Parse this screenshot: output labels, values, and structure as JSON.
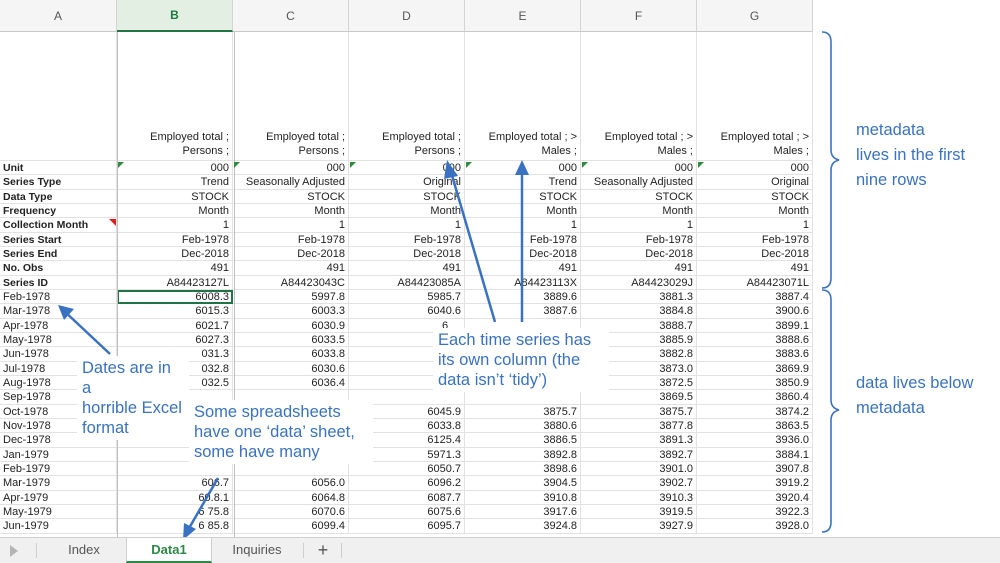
{
  "spreadsheet": {
    "columns": [
      "A",
      "B",
      "C",
      "D",
      "E",
      "F",
      "G"
    ],
    "selected_column": "B",
    "series_titles": [
      [
        "Employed total ;",
        "Persons ;"
      ],
      [
        "Employed total ;",
        "Persons ;"
      ],
      [
        "Employed total ;",
        "Persons ;"
      ],
      [
        "Employed total ;  >",
        "Males ;"
      ],
      [
        "Employed total ;  >",
        "Males ;"
      ],
      [
        "Employed total ;  >",
        "Males ;"
      ]
    ],
    "metadata_rows": [
      {
        "label": "Unit",
        "values": [
          "000",
          "000",
          "000",
          "000",
          "000",
          "000"
        ]
      },
      {
        "label": "Series Type",
        "values": [
          "Trend",
          "Seasonally Adjusted",
          "Original",
          "Trend",
          "Seasonally Adjusted",
          "Original"
        ]
      },
      {
        "label": "Data Type",
        "values": [
          "STOCK",
          "STOCK",
          "STOCK",
          "STOCK",
          "STOCK",
          "STOCK"
        ]
      },
      {
        "label": "Frequency",
        "values": [
          "Month",
          "Month",
          "Month",
          "Month",
          "Month",
          "Month"
        ]
      },
      {
        "label": "Collection Month",
        "values": [
          "1",
          "1",
          "1",
          "1",
          "1",
          "1"
        ]
      },
      {
        "label": "Series Start",
        "values": [
          "Feb-1978",
          "Feb-1978",
          "Feb-1978",
          "Feb-1978",
          "Feb-1978",
          "Feb-1978"
        ]
      },
      {
        "label": "Series End",
        "values": [
          "Dec-2018",
          "Dec-2018",
          "Dec-2018",
          "Dec-2018",
          "Dec-2018",
          "Dec-2018"
        ]
      },
      {
        "label": "No. Obs",
        "values": [
          "491",
          "491",
          "491",
          "491",
          "491",
          "491"
        ]
      },
      {
        "label": "Series ID",
        "values": [
          "A84423127L",
          "A84423043C",
          "A84423085A",
          "A84423113X",
          "A84423029J",
          "A84423071L"
        ]
      }
    ],
    "data_rows": [
      {
        "date": "Feb-1978",
        "values": [
          "6008.3",
          "5997.8",
          "5985.7",
          "3889.6",
          "3881.3",
          "3887.4"
        ]
      },
      {
        "date": "Mar-1978",
        "values": [
          "6015.3",
          "6003.3",
          "6040.6",
          "3887.6",
          "3884.8",
          "3900.6"
        ]
      },
      {
        "date": "Apr-1978",
        "values": [
          "6021.7",
          "6030.9",
          "",
          "",
          "3888.7",
          "3899.1"
        ]
      },
      {
        "date": "May-1978",
        "values": [
          "6027.3",
          "6033.5",
          "",
          "",
          "3885.9",
          "3888.6"
        ]
      },
      {
        "date": "Jun-1978",
        "values": [
          "",
          "6033.8",
          "",
          "",
          "3882.8",
          "3883.6"
        ]
      },
      {
        "date": "Jul-1978",
        "values": [
          "",
          "6030.6",
          "",
          "",
          "3873.0",
          "3869.9"
        ]
      },
      {
        "date": "Aug-1978",
        "values": [
          "",
          "6036.4",
          "",
          "",
          "3872.5",
          "3850.9"
        ]
      },
      {
        "date": "Sep-1978",
        "values": [
          "",
          "",
          "",
          "",
          "3869.5",
          "3860.4"
        ]
      },
      {
        "date": "Oct-1978",
        "values": [
          "",
          "",
          "6045.9",
          "3875.7",
          "3875.7",
          "3874.2"
        ]
      },
      {
        "date": "Nov-1978",
        "values": [
          "",
          "",
          "6033.8",
          "3880.6",
          "3877.8",
          "3863.5"
        ]
      },
      {
        "date": "Dec-1978",
        "values": [
          "",
          "",
          "6125.4",
          "3886.5",
          "3891.3",
          "3936.0"
        ]
      },
      {
        "date": "Jan-1979",
        "values": [
          "",
          "",
          "5971.3",
          "3892.8",
          "3892.7",
          "3884.1"
        ]
      },
      {
        "date": "Feb-1979",
        "values": [
          "",
          "",
          "6050.7",
          "3898.6",
          "3901.0",
          "3907.8"
        ]
      },
      {
        "date": "Mar-1979",
        "values": [
          "",
          "6056.0",
          "6096.2",
          "3904.5",
          "3902.7",
          "3919.2"
        ]
      },
      {
        "date": "Apr-1979",
        "values": [
          "",
          "6064.8",
          "6087.7",
          "3910.8",
          "3910.3",
          "3920.4"
        ]
      },
      {
        "date": "May-1979",
        "values": [
          "",
          "6070.6",
          "6075.6",
          "3917.6",
          "3919.5",
          "3922.3"
        ]
      },
      {
        "date": "Jun-1979",
        "values": [
          "",
          "6099.4",
          "6095.7",
          "3924.8",
          "3927.9",
          "3928.0"
        ]
      }
    ],
    "partial_values": {
      "b_jun": "031.3",
      "b_jul": "032.8",
      "b_aug": "032.5",
      "b_mar79": "606.7",
      "b_apr79": "60.8.1",
      "b_may79": "6 75.8",
      "b_jun79": "6 85.8",
      "d_cut": "6"
    }
  },
  "sheet_tabs": [
    {
      "label": "Index",
      "active": false
    },
    {
      "label": "Data1",
      "active": true
    },
    {
      "label": "Inquiries",
      "active": false
    }
  ],
  "add_tab_label": "+",
  "annotations": {
    "metadata_note": [
      "metadata",
      "lives in the first",
      "nine rows"
    ],
    "data_note": [
      "data lives below",
      "metadata"
    ],
    "dates_note": [
      "Dates are in a",
      "horrible Excel",
      "format"
    ],
    "tidy_note": [
      "Each time series has",
      "its own column (the",
      "data isn’t ‘tidy’)"
    ],
    "sheets_note": [
      "Some spreadsheets",
      "have one ‘data’ sheet,",
      "some have many"
    ]
  },
  "colors": {
    "annotation": "#3a72c2",
    "accent_green": "#217346",
    "flag_red": "#e02020"
  }
}
